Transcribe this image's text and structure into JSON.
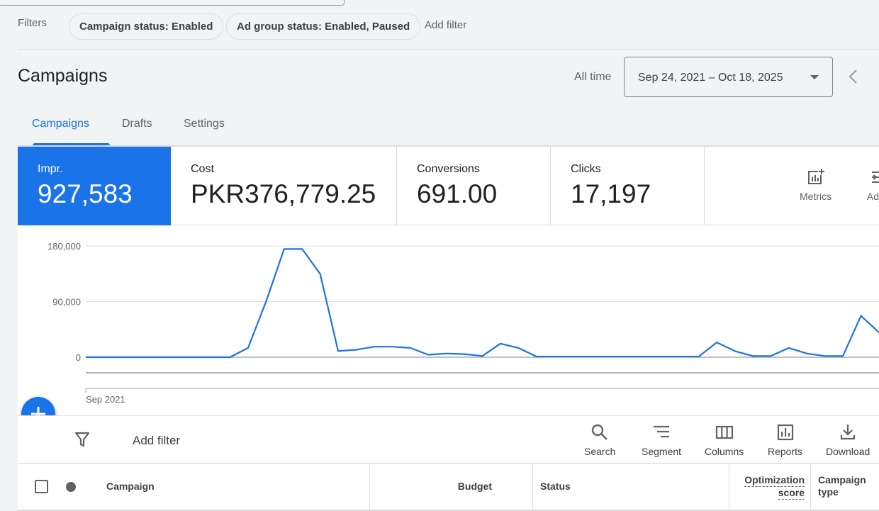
{
  "filters": {
    "label": "Filters",
    "chips": [
      "Campaign status: Enabled",
      "Ad group status: Enabled, Paused"
    ],
    "add_filter": "Add filter"
  },
  "header": {
    "title": "Campaigns",
    "range_label": "All time",
    "date_range": "Sep 24, 2021 – Oct 18, 2025"
  },
  "tabs": [
    "Campaigns",
    "Drafts",
    "Settings"
  ],
  "metrics": [
    {
      "label": "Impr.",
      "value": "927,583"
    },
    {
      "label": "Cost",
      "value": "PKR376,779.25"
    },
    {
      "label": "Conversions",
      "value": "691.00"
    },
    {
      "label": "Clicks",
      "value": "17,197"
    }
  ],
  "metric_actions": {
    "metrics": "Metrics",
    "adjust": "Adj"
  },
  "chart_data": {
    "type": "line",
    "series": [
      {
        "name": "Impr.",
        "color": "#1a73e8",
        "values": [
          0,
          0,
          0,
          0,
          0,
          0,
          0,
          0,
          0,
          15000,
          90000,
          175000,
          175000,
          135000,
          10000,
          12000,
          17000,
          17000,
          15000,
          4000,
          6000,
          5000,
          2000,
          22000,
          15000,
          1000,
          1000,
          1000,
          1000,
          1000,
          1000,
          1000,
          1000,
          1000,
          1000,
          24000,
          10000,
          2000,
          2000,
          15000,
          6000,
          2000,
          2000,
          67000,
          40000
        ]
      }
    ],
    "y_ticks": [
      "180,000",
      "90,000",
      "0"
    ],
    "ylim": [
      0,
      180000
    ],
    "x_label": "Sep 2021",
    "grid": true
  },
  "toolbar": {
    "add_filter": "Add filter",
    "buttons": [
      "Search",
      "Segment",
      "Columns",
      "Reports",
      "Download"
    ]
  },
  "table": {
    "columns": {
      "campaign": "Campaign",
      "budget": "Budget",
      "status": "Status",
      "opt1": "Optimization",
      "opt2": "score",
      "type1": "Campaign",
      "type2": "type"
    }
  }
}
